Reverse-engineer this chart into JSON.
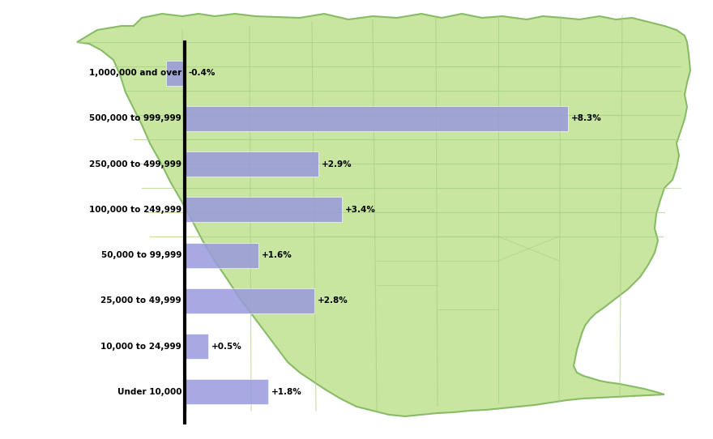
{
  "categories": [
    "1,000,000 and over",
    "500,000 to 999,999",
    "250,000 to 499,999",
    "100,000 to 249,999",
    "50,000 to 99,999",
    "25,000 to 49,999",
    "10,000 to 24,999",
    "Under 10,000"
  ],
  "values": [
    -0.4,
    8.3,
    2.9,
    3.4,
    1.6,
    2.8,
    0.5,
    1.8
  ],
  "labels": [
    "-0.4%",
    "+8.3%",
    "+2.9%",
    "+3.4%",
    "+1.6%",
    "+2.8%",
    "+0.5%",
    "+1.8%"
  ],
  "bar_color": "#9999dd",
  "background_color": "#c8e6a0",
  "map_border_color": "#88bb66",
  "map_fill_color": "#c8e6a0",
  "map_state_line_color": "#aad080",
  "axis_line_color": "#000000",
  "label_color": "#000000",
  "figure_bg": "#ffffff",
  "max_value": 8.3,
  "bar_height": 0.55,
  "label_fontsize": 7.5,
  "cat_fontsize": 7.5,
  "negative_bar_width": 0.4
}
